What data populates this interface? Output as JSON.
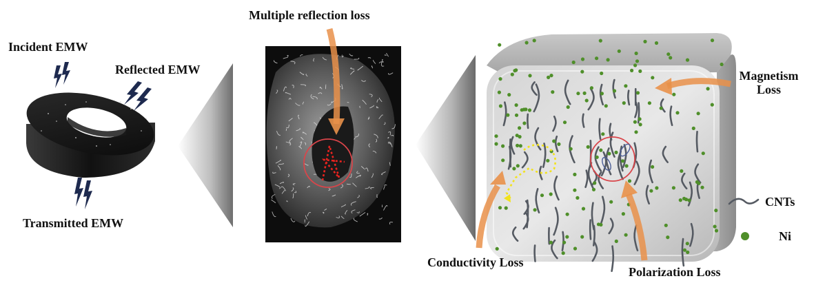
{
  "labels": {
    "incident": "Incident EMW",
    "reflected": "Reflected EMW",
    "transmitted": "Transmitted EMW",
    "multiple_reflection": "Multiple reflection loss",
    "magnetism_line1": "Magnetism",
    "magnetism_line2": "Loss",
    "conductivity": "Conductivity Loss",
    "polarization": "Polarization Loss",
    "legend_cnts": "CNTs",
    "legend_ni": "Ni"
  },
  "colors": {
    "arrow_orange": "#e9914a",
    "wave_blue": "#1e2a4f",
    "ni_green": "#4f8f2a",
    "cnt_gray": "#555a62",
    "circle_red": "#d9454a",
    "conduction_yellow": "#f2e21c",
    "reflection_red": "#e8231f"
  },
  "icons": [
    "lightning-wave-icon",
    "ring-absorber-icon",
    "cube-composite-icon",
    "sem-micrograph-image"
  ]
}
